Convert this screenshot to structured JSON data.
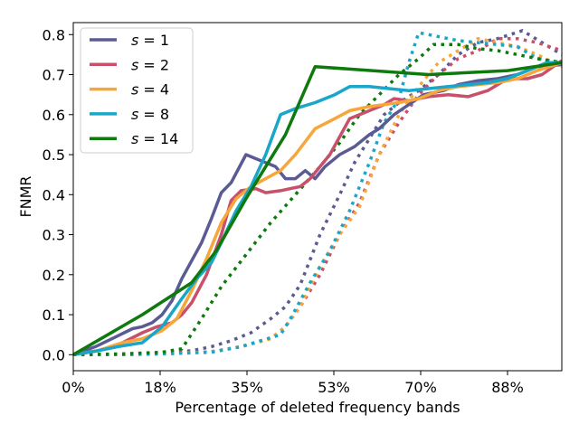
{
  "chart_data": {
    "type": "line",
    "xlabel": "Percentage of deleted frequency bands",
    "ylabel": "FNMR",
    "xlim": [
      0,
      99
    ],
    "ylim": [
      -0.04,
      0.83
    ],
    "xticks": [
      {
        "value": 0,
        "label": "0%"
      },
      {
        "value": 17.6,
        "label": "18%"
      },
      {
        "value": 35.2,
        "label": "35%"
      },
      {
        "value": 52.8,
        "label": "53%"
      },
      {
        "value": 70.4,
        "label": "70%"
      },
      {
        "value": 88,
        "label": "88%"
      }
    ],
    "yticks": [
      {
        "value": 0.0,
        "label": "0.0"
      },
      {
        "value": 0.1,
        "label": "0.1"
      },
      {
        "value": 0.2,
        "label": "0.2"
      },
      {
        "value": 0.3,
        "label": "0.3"
      },
      {
        "value": 0.4,
        "label": "0.4"
      },
      {
        "value": 0.5,
        "label": "0.5"
      },
      {
        "value": 0.6,
        "label": "0.6"
      },
      {
        "value": 0.7,
        "label": "0.7"
      },
      {
        "value": 0.8,
        "label": "0.8"
      }
    ],
    "legend_position": "top-left",
    "series": [
      {
        "name": "s = 1",
        "s_symbol": "s",
        "s_value": "1",
        "color": "#5b5b94",
        "solid": [
          [
            0,
            0
          ],
          [
            4.5,
            0.02
          ],
          [
            7,
            0.035
          ],
          [
            9.5,
            0.05
          ],
          [
            12,
            0.065
          ],
          [
            14,
            0.07
          ],
          [
            16,
            0.08
          ],
          [
            18,
            0.1
          ],
          [
            20,
            0.135
          ],
          [
            22,
            0.19
          ],
          [
            24,
            0.235
          ],
          [
            26,
            0.28
          ],
          [
            28,
            0.34
          ],
          [
            30,
            0.405
          ],
          [
            32,
            0.43
          ],
          [
            35,
            0.5
          ],
          [
            37,
            0.49
          ],
          [
            39,
            0.48
          ],
          [
            41,
            0.47
          ],
          [
            43,
            0.44
          ],
          [
            45,
            0.44
          ],
          [
            47,
            0.46
          ],
          [
            49,
            0.44
          ],
          [
            51,
            0.47
          ],
          [
            54,
            0.5
          ],
          [
            57,
            0.52
          ],
          [
            60,
            0.55
          ],
          [
            62,
            0.565
          ],
          [
            65,
            0.6
          ],
          [
            68,
            0.625
          ],
          [
            71,
            0.65
          ],
          [
            75,
            0.66
          ],
          [
            78,
            0.675
          ],
          [
            82,
            0.685
          ],
          [
            86,
            0.69
          ],
          [
            90,
            0.7
          ],
          [
            94,
            0.72
          ],
          [
            99,
            0.725
          ]
        ],
        "dotted": [
          [
            0,
            0
          ],
          [
            10,
            0.0
          ],
          [
            18,
            0.005
          ],
          [
            24,
            0.01
          ],
          [
            28,
            0.02
          ],
          [
            32,
            0.035
          ],
          [
            36,
            0.055
          ],
          [
            40,
            0.09
          ],
          [
            43,
            0.12
          ],
          [
            46,
            0.175
          ],
          [
            50,
            0.3
          ],
          [
            54,
            0.4
          ],
          [
            57,
            0.48
          ],
          [
            60,
            0.54
          ],
          [
            63,
            0.6
          ],
          [
            66,
            0.63
          ],
          [
            70,
            0.66
          ],
          [
            74,
            0.7
          ],
          [
            78,
            0.75
          ],
          [
            82,
            0.78
          ],
          [
            86,
            0.79
          ],
          [
            91,
            0.81
          ],
          [
            95,
            0.78
          ],
          [
            99,
            0.75
          ]
        ]
      },
      {
        "name": "s = 2",
        "s_symbol": "s",
        "s_value": "2",
        "color": "#c8506a",
        "solid": [
          [
            0,
            0
          ],
          [
            5,
            0.01
          ],
          [
            10,
            0.03
          ],
          [
            14,
            0.055
          ],
          [
            17,
            0.07
          ],
          [
            20,
            0.08
          ],
          [
            22,
            0.1
          ],
          [
            24,
            0.13
          ],
          [
            27,
            0.2
          ],
          [
            30,
            0.3
          ],
          [
            32,
            0.385
          ],
          [
            34,
            0.41
          ],
          [
            37,
            0.415
          ],
          [
            39,
            0.405
          ],
          [
            42,
            0.41
          ],
          [
            44,
            0.415
          ],
          [
            46,
            0.42
          ],
          [
            48,
            0.44
          ],
          [
            52,
            0.5
          ],
          [
            56,
            0.59
          ],
          [
            60,
            0.61
          ],
          [
            63,
            0.625
          ],
          [
            65,
            0.64
          ],
          [
            68,
            0.635
          ],
          [
            72,
            0.645
          ],
          [
            76,
            0.65
          ],
          [
            80,
            0.645
          ],
          [
            84,
            0.66
          ],
          [
            88,
            0.69
          ],
          [
            92,
            0.69
          ],
          [
            95,
            0.7
          ],
          [
            99,
            0.735
          ]
        ],
        "dotted": [
          [
            0,
            0
          ],
          [
            10,
            0.0
          ],
          [
            20,
            0.003
          ],
          [
            28,
            0.008
          ],
          [
            34,
            0.02
          ],
          [
            40,
            0.04
          ],
          [
            43,
            0.07
          ],
          [
            46,
            0.12
          ],
          [
            50,
            0.2
          ],
          [
            54,
            0.3
          ],
          [
            58,
            0.38
          ],
          [
            62,
            0.5
          ],
          [
            66,
            0.58
          ],
          [
            70,
            0.65
          ],
          [
            74,
            0.7
          ],
          [
            78,
            0.74
          ],
          [
            82,
            0.76
          ],
          [
            86,
            0.79
          ],
          [
            90,
            0.79
          ],
          [
            94,
            0.78
          ],
          [
            99,
            0.76
          ]
        ]
      },
      {
        "name": "s = 4",
        "s_symbol": "s",
        "s_value": "4",
        "color": "#f7a739",
        "solid": [
          [
            0,
            0
          ],
          [
            5,
            0.01
          ],
          [
            10,
            0.03
          ],
          [
            14,
            0.04
          ],
          [
            18,
            0.06
          ],
          [
            21,
            0.09
          ],
          [
            24,
            0.16
          ],
          [
            27,
            0.24
          ],
          [
            30,
            0.33
          ],
          [
            33,
            0.39
          ],
          [
            36,
            0.42
          ],
          [
            39,
            0.44
          ],
          [
            42,
            0.46
          ],
          [
            45,
            0.5
          ],
          [
            49,
            0.565
          ],
          [
            53,
            0.59
          ],
          [
            56,
            0.61
          ],
          [
            60,
            0.62
          ],
          [
            63,
            0.625
          ],
          [
            66,
            0.63
          ],
          [
            70,
            0.64
          ],
          [
            74,
            0.66
          ],
          [
            78,
            0.67
          ],
          [
            82,
            0.675
          ],
          [
            86,
            0.68
          ],
          [
            90,
            0.69
          ],
          [
            94,
            0.71
          ],
          [
            99,
            0.73
          ]
        ],
        "dotted": [
          [
            0,
            0
          ],
          [
            10,
            0.0
          ],
          [
            20,
            0.003
          ],
          [
            28,
            0.008
          ],
          [
            34,
            0.02
          ],
          [
            40,
            0.04
          ],
          [
            43,
            0.07
          ],
          [
            46,
            0.12
          ],
          [
            50,
            0.22
          ],
          [
            54,
            0.3
          ],
          [
            58,
            0.37
          ],
          [
            62,
            0.5
          ],
          [
            66,
            0.6
          ],
          [
            70,
            0.67
          ],
          [
            74,
            0.73
          ],
          [
            78,
            0.76
          ],
          [
            82,
            0.79
          ],
          [
            86,
            0.78
          ],
          [
            90,
            0.77
          ],
          [
            94,
            0.75
          ],
          [
            99,
            0.72
          ]
        ]
      },
      {
        "name": "s = 8",
        "s_symbol": "s",
        "s_value": "8",
        "color": "#19a6c8",
        "solid": [
          [
            0,
            0
          ],
          [
            5,
            0.01
          ],
          [
            9,
            0.02
          ],
          [
            14,
            0.03
          ],
          [
            18,
            0.07
          ],
          [
            22,
            0.14
          ],
          [
            25,
            0.19
          ],
          [
            28,
            0.23
          ],
          [
            30,
            0.28
          ],
          [
            33,
            0.36
          ],
          [
            36,
            0.42
          ],
          [
            39,
            0.5
          ],
          [
            42,
            0.6
          ],
          [
            45,
            0.615
          ],
          [
            49,
            0.63
          ],
          [
            53,
            0.65
          ],
          [
            56,
            0.67
          ],
          [
            60,
            0.67
          ],
          [
            64,
            0.665
          ],
          [
            68,
            0.66
          ],
          [
            72,
            0.665
          ],
          [
            76,
            0.67
          ],
          [
            80,
            0.675
          ],
          [
            84,
            0.68
          ],
          [
            88,
            0.69
          ],
          [
            92,
            0.71
          ],
          [
            96,
            0.73
          ],
          [
            99,
            0.73
          ]
        ],
        "dotted": [
          [
            0,
            0
          ],
          [
            10,
            0.0
          ],
          [
            20,
            0.003
          ],
          [
            28,
            0.006
          ],
          [
            34,
            0.02
          ],
          [
            38,
            0.035
          ],
          [
            42,
            0.05
          ],
          [
            44,
            0.09
          ],
          [
            48,
            0.18
          ],
          [
            52,
            0.26
          ],
          [
            56,
            0.36
          ],
          [
            60,
            0.48
          ],
          [
            63,
            0.58
          ],
          [
            66,
            0.64
          ],
          [
            68,
            0.73
          ],
          [
            70,
            0.805
          ],
          [
            74,
            0.795
          ],
          [
            78,
            0.785
          ],
          [
            82,
            0.78
          ],
          [
            86,
            0.775
          ],
          [
            90,
            0.77
          ],
          [
            94,
            0.74
          ],
          [
            99,
            0.73
          ]
        ]
      },
      {
        "name": "s = 14",
        "s_symbol": "s",
        "s_value": "14",
        "color": "#0e7a0e",
        "solid": [
          [
            0,
            0
          ],
          [
            14,
            0.1
          ],
          [
            24,
            0.18
          ],
          [
            29,
            0.26
          ],
          [
            35,
            0.39
          ],
          [
            43,
            0.55
          ],
          [
            49,
            0.72
          ],
          [
            72,
            0.7
          ],
          [
            88,
            0.71
          ],
          [
            99,
            0.73
          ]
        ],
        "dotted": [
          [
            0,
            0
          ],
          [
            10,
            0.002
          ],
          [
            18,
            0.006
          ],
          [
            22,
            0.015
          ],
          [
            26,
            0.09
          ],
          [
            30,
            0.17
          ],
          [
            35,
            0.25
          ],
          [
            40,
            0.33
          ],
          [
            45,
            0.4
          ],
          [
            50,
            0.47
          ],
          [
            54,
            0.53
          ],
          [
            58,
            0.6
          ],
          [
            62,
            0.65
          ],
          [
            66,
            0.7
          ],
          [
            70,
            0.74
          ],
          [
            73,
            0.775
          ],
          [
            78,
            0.775
          ],
          [
            82,
            0.765
          ],
          [
            86,
            0.76
          ],
          [
            90,
            0.75
          ],
          [
            94,
            0.74
          ],
          [
            99,
            0.73
          ]
        ]
      }
    ]
  }
}
